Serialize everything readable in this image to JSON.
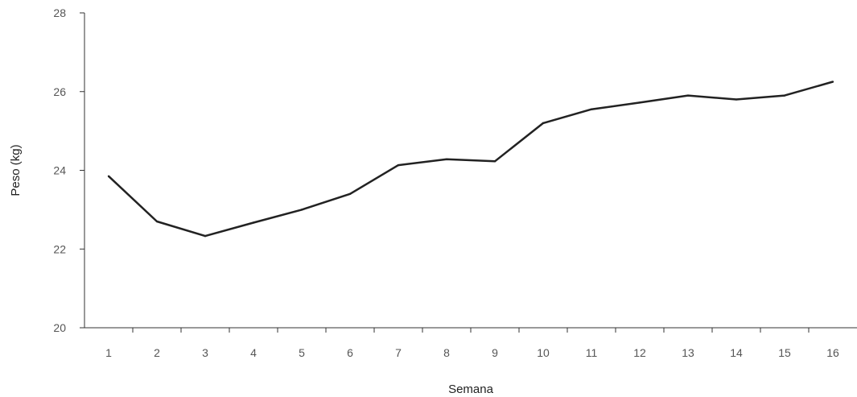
{
  "chart_data": {
    "type": "line",
    "title": "",
    "xlabel": "Semana",
    "ylabel": "Peso (kg)",
    "categories": [
      "1",
      "2",
      "3",
      "4",
      "5",
      "6",
      "7",
      "8",
      "9",
      "10",
      "11",
      "12",
      "13",
      "14",
      "15",
      "16"
    ],
    "series": [
      {
        "values": [
          23.85,
          22.7,
          22.33,
          22.67,
          23.0,
          23.4,
          24.13,
          24.28,
          24.23,
          25.2,
          25.55,
          25.72,
          25.9,
          25.8,
          25.9,
          26.25
        ]
      }
    ],
    "ylim": [
      20,
      28
    ],
    "yticks": [
      20,
      22,
      24,
      26,
      28
    ],
    "grid": false,
    "legend": "none",
    "line_color": "#222222"
  }
}
